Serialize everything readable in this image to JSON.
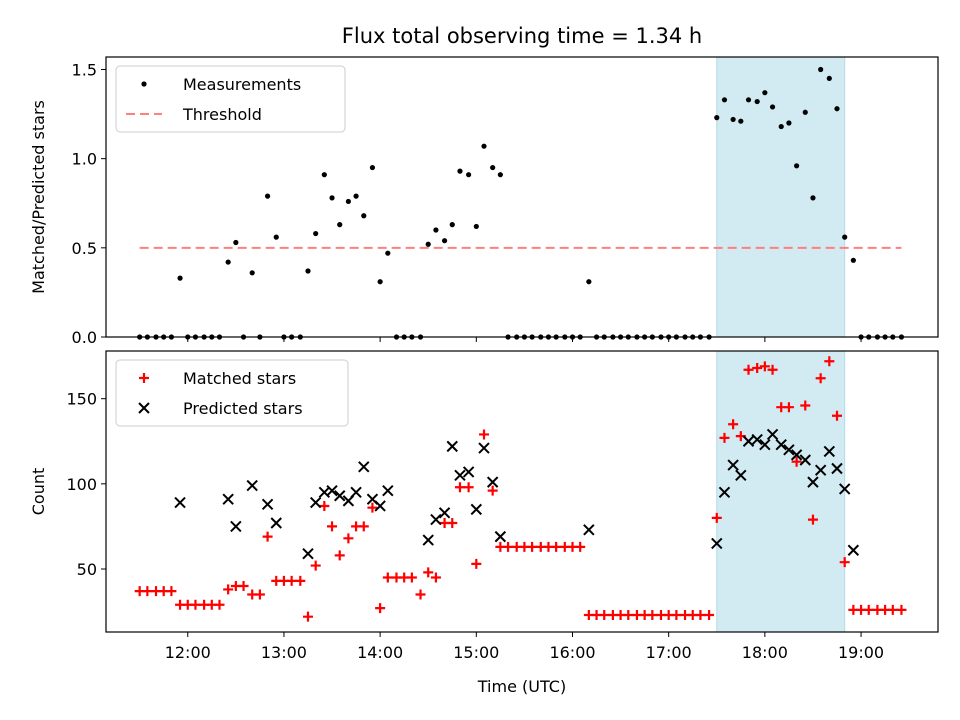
{
  "chart_data": {
    "title": "Flux total observing time = 1.34 h",
    "xlabel": "Time (UTC)",
    "x_unit": "hours UTC",
    "xlim": [
      11.15,
      19.8
    ],
    "xticks": [
      12,
      13,
      14,
      15,
      16,
      17,
      18,
      19
    ],
    "xtick_labels": [
      "12:00",
      "13:00",
      "14:00",
      "15:00",
      "16:00",
      "17:00",
      "18:00",
      "19:00"
    ],
    "shaded_region": {
      "x_start": 17.5,
      "x_end": 18.83,
      "color": "#add8e6"
    },
    "panels": [
      {
        "type": "scatter",
        "ylabel": "Matched/Predicted stars",
        "ylim": [
          0,
          1.57
        ],
        "yticks": [
          0.0,
          0.5,
          1.0,
          1.5
        ],
        "ytick_labels": [
          "0.0",
          "0.5",
          "1.0",
          "1.5"
        ],
        "legend": "top-left",
        "threshold": {
          "name": "Threshold",
          "value": 0.5,
          "x_start": 11.5,
          "x_end": 19.42,
          "color": "#ff7f7f"
        },
        "series": [
          {
            "name": "Measurements",
            "color": "#000000",
            "marker": "dot",
            "x": [
              11.5,
              11.58,
              11.67,
              11.75,
              11.83,
              11.92,
              12.0,
              12.08,
              12.17,
              12.25,
              12.33,
              12.42,
              12.5,
              12.58,
              12.67,
              12.75,
              12.83,
              12.92,
              13.0,
              13.08,
              13.17,
              13.25,
              13.33,
              13.42,
              13.5,
              13.58,
              13.67,
              13.75,
              13.83,
              13.92,
              14.0,
              14.08,
              14.17,
              14.25,
              14.33,
              14.42,
              14.5,
              14.58,
              14.67,
              14.75,
              14.83,
              14.92,
              15.0,
              15.08,
              15.17,
              15.25,
              15.33,
              15.42,
              15.5,
              15.58,
              15.67,
              15.75,
              15.83,
              15.92,
              16.0,
              16.08,
              16.17,
              16.25,
              16.33,
              16.42,
              16.5,
              16.58,
              16.67,
              16.75,
              16.83,
              16.92,
              17.0,
              17.08,
              17.17,
              17.25,
              17.33,
              17.42,
              17.5,
              17.58,
              17.67,
              17.75,
              17.83,
              17.92,
              18.0,
              18.08,
              18.17,
              18.25,
              18.33,
              18.42,
              18.5,
              18.58,
              18.67,
              18.75,
              18.83,
              18.92,
              19.0,
              19.08,
              19.17,
              19.25,
              19.33,
              19.42
            ],
            "y": [
              0,
              0,
              0,
              0,
              0,
              0.33,
              0,
              0,
              0,
              0,
              0,
              0.42,
              0.53,
              0,
              0.36,
              0,
              0.79,
              0.56,
              0,
              0,
              0,
              0.37,
              0.58,
              0.91,
              0.78,
              0.63,
              0.76,
              0.79,
              0.68,
              0.95,
              0.31,
              0.47,
              0,
              0,
              0,
              0,
              0.52,
              0.6,
              0.54,
              0.63,
              0.93,
              0.91,
              0.62,
              1.07,
              0.95,
              0.91,
              0,
              0,
              0,
              0,
              0,
              0,
              0,
              0,
              0,
              0,
              0.31,
              0,
              0,
              0,
              0,
              0,
              0,
              0,
              0,
              0,
              0,
              0,
              0,
              0,
              0,
              0,
              1.23,
              1.33,
              1.22,
              1.21,
              1.33,
              1.32,
              1.37,
              1.29,
              1.18,
              1.2,
              0.96,
              1.26,
              0.78,
              1.5,
              1.45,
              1.28,
              0.56,
              0.43,
              0,
              0,
              0,
              0,
              0,
              0
            ]
          }
        ]
      },
      {
        "type": "scatter",
        "ylabel": "Count",
        "ylim": [
          13,
          178
        ],
        "yticks": [
          50,
          100,
          150
        ],
        "ytick_labels": [
          "50",
          "100",
          "150"
        ],
        "legend": "top-left",
        "series": [
          {
            "name": "Matched stars",
            "color": "#ff0000",
            "marker": "plus",
            "x": [
              11.5,
              11.58,
              11.67,
              11.75,
              11.83,
              11.92,
              12.0,
              12.08,
              12.17,
              12.25,
              12.33,
              12.42,
              12.5,
              12.58,
              12.67,
              12.75,
              12.83,
              12.92,
              13.0,
              13.08,
              13.17,
              13.25,
              13.33,
              13.42,
              13.5,
              13.58,
              13.67,
              13.75,
              13.83,
              13.92,
              14.0,
              14.08,
              14.17,
              14.25,
              14.33,
              14.42,
              14.5,
              14.58,
              14.67,
              14.75,
              14.83,
              14.92,
              15.0,
              15.08,
              15.17,
              15.25,
              15.33,
              15.42,
              15.5,
              15.58,
              15.67,
              15.75,
              15.83,
              15.92,
              16.0,
              16.08,
              16.17,
              16.25,
              16.33,
              16.42,
              16.5,
              16.58,
              16.67,
              16.75,
              16.83,
              16.92,
              17.0,
              17.08,
              17.17,
              17.25,
              17.33,
              17.42,
              17.5,
              17.58,
              17.67,
              17.75,
              17.83,
              17.92,
              18.0,
              18.08,
              18.17,
              18.25,
              18.33,
              18.42,
              18.5,
              18.58,
              18.67,
              18.75,
              18.83,
              18.92,
              19.0,
              19.08,
              19.17,
              19.25,
              19.33,
              19.42
            ],
            "y": [
              37,
              37,
              37,
              37,
              37,
              29,
              29,
              29,
              29,
              29,
              29,
              38,
              40,
              40,
              35,
              35,
              69,
              43,
              43,
              43,
              43,
              22,
              52,
              87,
              75,
              58,
              68,
              75,
              75,
              86,
              27,
              45,
              45,
              45,
              45,
              35,
              48,
              45,
              77,
              77,
              98,
              98,
              53,
              129,
              96,
              63,
              63,
              63,
              63,
              63,
              63,
              63,
              63,
              63,
              63,
              63,
              23,
              23,
              23,
              23,
              23,
              23,
              23,
              23,
              23,
              23,
              23,
              23,
              23,
              23,
              23,
              23,
              80,
              127,
              135,
              128,
              167,
              168,
              169,
              167,
              145,
              145,
              113,
              146,
              79,
              162,
              172,
              140,
              54,
              26,
              26,
              26,
              26,
              26,
              26,
              26
            ]
          },
          {
            "name": "Predicted stars",
            "color": "#000000",
            "marker": "x",
            "x": [
              11.92,
              12.42,
              12.5,
              12.67,
              12.83,
              12.92,
              13.25,
              13.33,
              13.42,
              13.5,
              13.58,
              13.67,
              13.75,
              13.83,
              13.92,
              14.0,
              14.08,
              14.5,
              14.58,
              14.67,
              14.75,
              14.83,
              14.92,
              15.0,
              15.08,
              15.17,
              15.25,
              16.17,
              17.5,
              17.58,
              17.67,
              17.75,
              17.83,
              17.92,
              18.0,
              18.08,
              18.17,
              18.25,
              18.33,
              18.42,
              18.5,
              18.58,
              18.67,
              18.75,
              18.83,
              18.92
            ],
            "y": [
              89,
              91,
              75,
              99,
              88,
              77,
              59,
              89,
              95,
              96,
              93,
              90,
              95,
              110,
              91,
              87,
              96,
              67,
              79,
              83,
              122,
              105,
              107,
              85,
              121,
              101,
              69,
              73,
              65,
              95,
              111,
              105,
              125,
              126,
              123,
              129,
              123,
              120,
              117,
              114,
              101,
              108,
              119,
              109,
              97,
              61
            ]
          }
        ]
      }
    ]
  }
}
